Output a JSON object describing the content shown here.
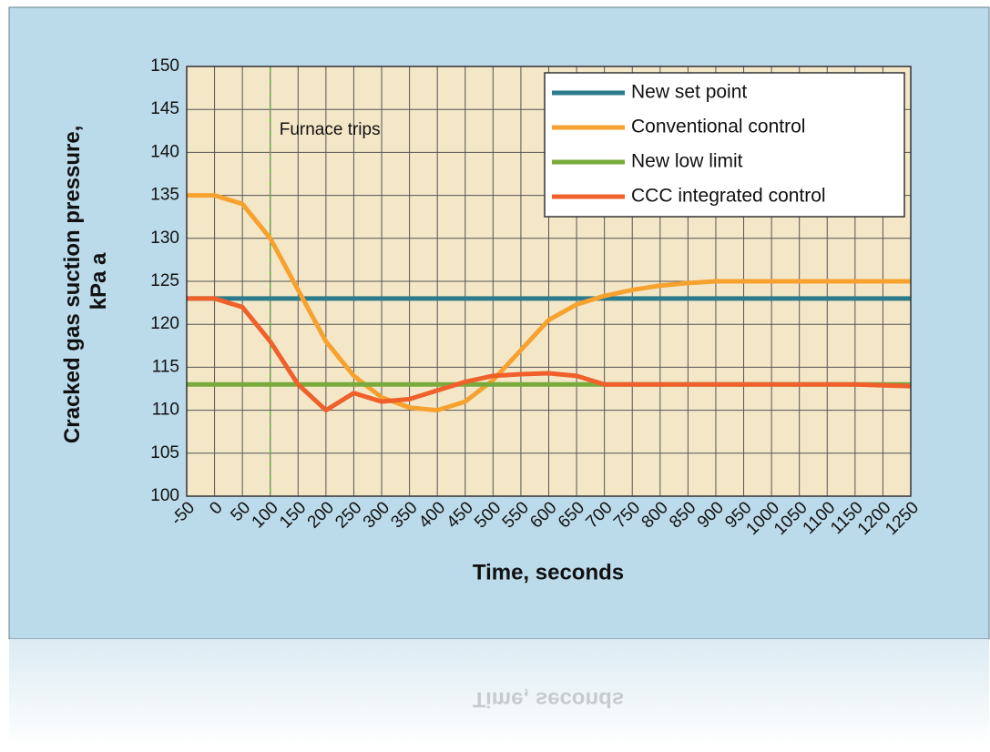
{
  "chart_data": {
    "type": "line",
    "ylabel_lines": [
      "Cracked gas suction pressure,",
      "kPa a"
    ],
    "xlabel": "Time, seconds",
    "annotation": {
      "text": "Furnace trips",
      "x": 100,
      "color": "#5bb23a"
    },
    "x": [
      -50,
      0,
      50,
      100,
      150,
      200,
      250,
      300,
      350,
      400,
      450,
      500,
      550,
      600,
      650,
      700,
      750,
      800,
      850,
      900,
      950,
      1000,
      1050,
      1100,
      1150,
      1200,
      1250
    ],
    "series": [
      {
        "name": "New set point",
        "color": "#2b7b8c",
        "values": [
          123,
          123,
          123,
          123,
          123,
          123,
          123,
          123,
          123,
          123,
          123,
          123,
          123,
          123,
          123,
          123,
          123,
          123,
          123,
          123,
          123,
          123,
          123,
          123,
          123,
          123,
          123
        ]
      },
      {
        "name": "Conventional control",
        "color": "#f7a22f",
        "values": [
          135,
          135,
          134,
          130,
          124,
          118,
          114,
          111.5,
          110.3,
          110,
          111,
          113.5,
          117,
          120.5,
          122.3,
          123.3,
          124,
          124.5,
          124.8,
          125,
          125,
          125,
          125,
          125,
          125,
          125,
          125
        ]
      },
      {
        "name": "New low limit",
        "color": "#78ab3c",
        "values": [
          113,
          113,
          113,
          113,
          113,
          113,
          113,
          113,
          113,
          113,
          113,
          113,
          113,
          113,
          113,
          113,
          113,
          113,
          113,
          113,
          113,
          113,
          113,
          113,
          113,
          113,
          113
        ]
      },
      {
        "name": "CCC integrated control",
        "color": "#ef602b",
        "values": [
          123,
          123,
          122,
          118,
          113,
          110,
          112,
          111,
          111.3,
          112.3,
          113.3,
          114,
          114.2,
          114.3,
          114,
          113,
          113,
          113,
          113,
          113,
          113,
          113,
          113,
          113,
          113,
          112.9,
          112.8
        ]
      }
    ],
    "xlim": [
      -50,
      1250
    ],
    "xticks": [
      -50,
      0,
      50,
      100,
      150,
      200,
      250,
      300,
      350,
      400,
      450,
      500,
      550,
      600,
      650,
      700,
      750,
      800,
      850,
      900,
      950,
      1000,
      1050,
      1100,
      1150,
      1200,
      1250
    ],
    "ylim": [
      100,
      150
    ],
    "yticks": [
      100,
      105,
      110,
      115,
      120,
      125,
      130,
      135,
      140,
      145,
      150
    ],
    "grid": true,
    "legend": "upper right"
  }
}
